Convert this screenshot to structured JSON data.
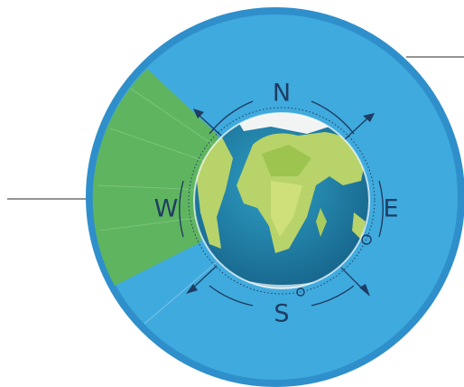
{
  "compass": {
    "north": "N",
    "east": "E",
    "south": "S",
    "west": "W"
  }
}
